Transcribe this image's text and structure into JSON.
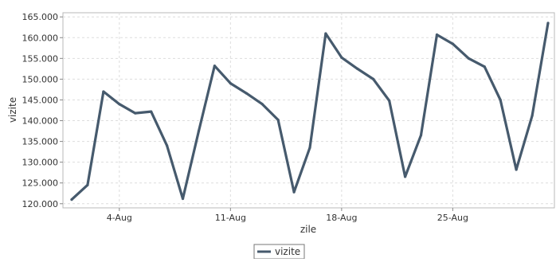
{
  "chart_data": {
    "type": "line",
    "xlabel": "zile",
    "ylabel": "vizite",
    "ylim": [
      119000,
      166000
    ],
    "x_ticks": [
      "4-Aug",
      "11-Aug",
      "18-Aug",
      "25-Aug"
    ],
    "y_ticks": [
      "120.000",
      "125.000",
      "130.000",
      "135.000",
      "140.000",
      "145.000",
      "150.000",
      "155.000",
      "160.000",
      "165.000"
    ],
    "x": [
      "1-Aug",
      "2-Aug",
      "3-Aug",
      "4-Aug",
      "5-Aug",
      "6-Aug",
      "7-Aug",
      "8-Aug",
      "9-Aug",
      "10-Aug",
      "11-Aug",
      "12-Aug",
      "13-Aug",
      "14-Aug",
      "15-Aug",
      "16-Aug",
      "17-Aug",
      "18-Aug",
      "19-Aug",
      "20-Aug",
      "21-Aug",
      "22-Aug",
      "23-Aug",
      "24-Aug",
      "25-Aug",
      "26-Aug",
      "27-Aug",
      "28-Aug",
      "29-Aug",
      "30-Aug",
      "31-Aug"
    ],
    "series": [
      {
        "name": "vizite",
        "color": "#465A6D",
        "values": [
          121000,
          124500,
          147000,
          144000,
          141800,
          142200,
          134000,
          121200,
          137500,
          153200,
          149000,
          146600,
          144000,
          140200,
          122800,
          133500,
          161000,
          155200,
          152500,
          150000,
          144800,
          126500,
          136500,
          160700,
          158500,
          155000,
          153000,
          145000,
          128200,
          141200,
          163500
        ]
      }
    ],
    "grid": true,
    "legend": "bottom-center"
  }
}
